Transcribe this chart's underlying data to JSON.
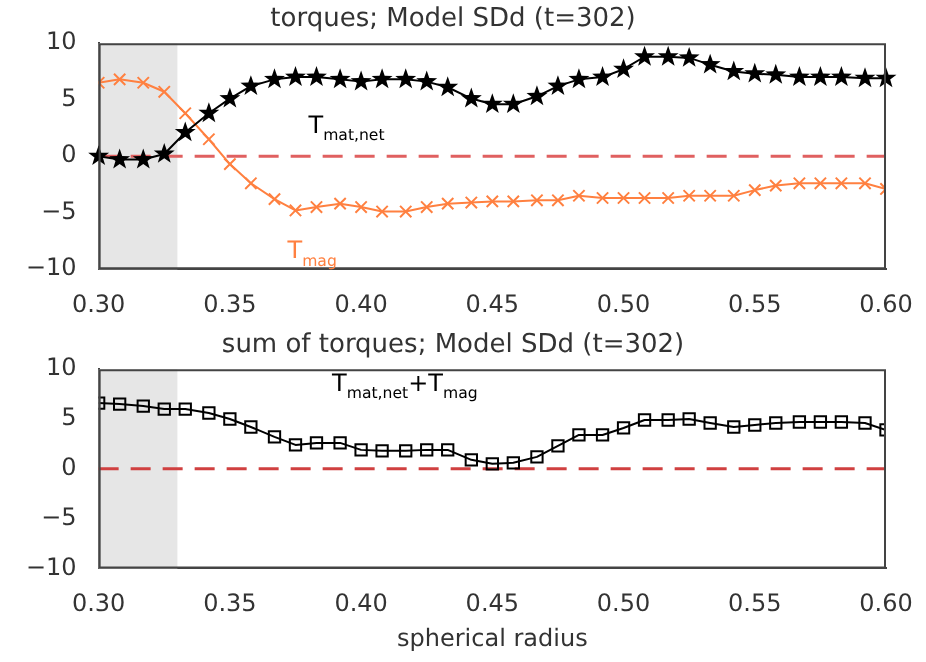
{
  "chart_data": [
    {
      "type": "line",
      "title": "torques; Model SDd (t=302)",
      "x": [
        0.3,
        0.308,
        0.317,
        0.325,
        0.333,
        0.342,
        0.35,
        0.358,
        0.367,
        0.375,
        0.383,
        0.392,
        0.4,
        0.408,
        0.417,
        0.425,
        0.433,
        0.442,
        0.45,
        0.458,
        0.467,
        0.475,
        0.483,
        0.492,
        0.5,
        0.508,
        0.517,
        0.525,
        0.533,
        0.542,
        0.55,
        0.558,
        0.567,
        0.575,
        0.583,
        0.592,
        0.6
      ],
      "series": [
        {
          "name": "T$_{mat,net}$",
          "color": "#000000",
          "marker": "star",
          "values": [
            0,
            -0.3,
            -0.3,
            0.2,
            2.1,
            3.8,
            5.1,
            6.2,
            6.8,
            7.0,
            7.0,
            6.8,
            6.6,
            6.8,
            6.8,
            6.6,
            6.1,
            5.1,
            4.6,
            4.6,
            5.3,
            6.2,
            6.8,
            7.0,
            7.7,
            8.8,
            8.8,
            8.7,
            8.1,
            7.5,
            7.3,
            7.2,
            7.0,
            7.0,
            7.0,
            6.9,
            6.9
          ]
        },
        {
          "name": "T$_{mag}$",
          "color": "#ff8040",
          "marker": "cross",
          "values": [
            6.5,
            6.8,
            6.5,
            5.7,
            3.8,
            1.5,
            -0.7,
            -2.4,
            -3.8,
            -4.8,
            -4.5,
            -4.2,
            -4.5,
            -4.9,
            -4.9,
            -4.5,
            -4.2,
            -4.1,
            -4.0,
            -4.0,
            -3.9,
            -3.9,
            -3.5,
            -3.7,
            -3.7,
            -3.7,
            -3.7,
            -3.5,
            -3.5,
            -3.5,
            -3.0,
            -2.6,
            -2.4,
            -2.4,
            -2.4,
            -2.4,
            -2.9
          ]
        }
      ],
      "xlim": [
        0.3,
        0.6
      ],
      "xticks": [
        {
          "value": 0.3,
          "label": "0.30"
        },
        {
          "value": 0.35,
          "label": "0.35"
        },
        {
          "value": 0.4,
          "label": "0.40"
        },
        {
          "value": 0.45,
          "label": "0.45"
        },
        {
          "value": 0.5,
          "label": "0.50"
        },
        {
          "value": 0.55,
          "label": "0.55"
        },
        {
          "value": 0.6,
          "label": "0.60"
        }
      ],
      "ylim": [
        -10,
        10
      ],
      "yticks": [
        -10,
        -5,
        0,
        5,
        10
      ],
      "ref_lines": [
        {
          "axis": "y",
          "value": 0,
          "color": "#e06060",
          "line_style": "dashed"
        }
      ],
      "bands": [
        {
          "axis": "x",
          "from": 0.3,
          "to": 0.33,
          "color": "#e6e6e6"
        }
      ]
    },
    {
      "type": "line",
      "title": "sum of torques; Model SDd (t=302)",
      "xlabel": "spherical radius",
      "x": [
        0.3,
        0.308,
        0.317,
        0.325,
        0.333,
        0.342,
        0.35,
        0.358,
        0.367,
        0.375,
        0.383,
        0.392,
        0.4,
        0.408,
        0.417,
        0.425,
        0.433,
        0.442,
        0.45,
        0.458,
        0.467,
        0.475,
        0.483,
        0.492,
        0.5,
        0.508,
        0.517,
        0.525,
        0.533,
        0.542,
        0.55,
        0.558,
        0.567,
        0.575,
        0.583,
        0.592,
        0.6
      ],
      "series": [
        {
          "name": "T$_{mat,net}$+T$_{mag}$",
          "color": "#000000",
          "marker": "square",
          "values": [
            6.6,
            6.5,
            6.3,
            6.0,
            6.0,
            5.6,
            5.0,
            4.2,
            3.2,
            2.4,
            2.6,
            2.6,
            1.9,
            1.8,
            1.8,
            1.9,
            1.9,
            0.9,
            0.5,
            0.6,
            1.2,
            2.3,
            3.4,
            3.4,
            4.1,
            4.9,
            4.9,
            5.0,
            4.6,
            4.2,
            4.4,
            4.6,
            4.7,
            4.7,
            4.7,
            4.6,
            3.9
          ]
        }
      ],
      "xlim": [
        0.3,
        0.6
      ],
      "xticks": [
        {
          "value": 0.3,
          "label": "0.30"
        },
        {
          "value": 0.35,
          "label": "0.35"
        },
        {
          "value": 0.4,
          "label": "0.40"
        },
        {
          "value": 0.45,
          "label": "0.45"
        },
        {
          "value": 0.5,
          "label": "0.50"
        },
        {
          "value": 0.55,
          "label": "0.55"
        },
        {
          "value": 0.6,
          "label": "0.60"
        }
      ],
      "ylim": [
        -10,
        10
      ],
      "yticks": [
        -10,
        -5,
        0,
        5,
        10
      ],
      "ref_lines": [
        {
          "axis": "y",
          "value": 0,
          "color": "#d04040",
          "line_style": "dashed"
        }
      ],
      "bands": [
        {
          "axis": "x",
          "from": 0.3,
          "to": 0.33,
          "color": "#e6e6e6"
        }
      ]
    }
  ]
}
